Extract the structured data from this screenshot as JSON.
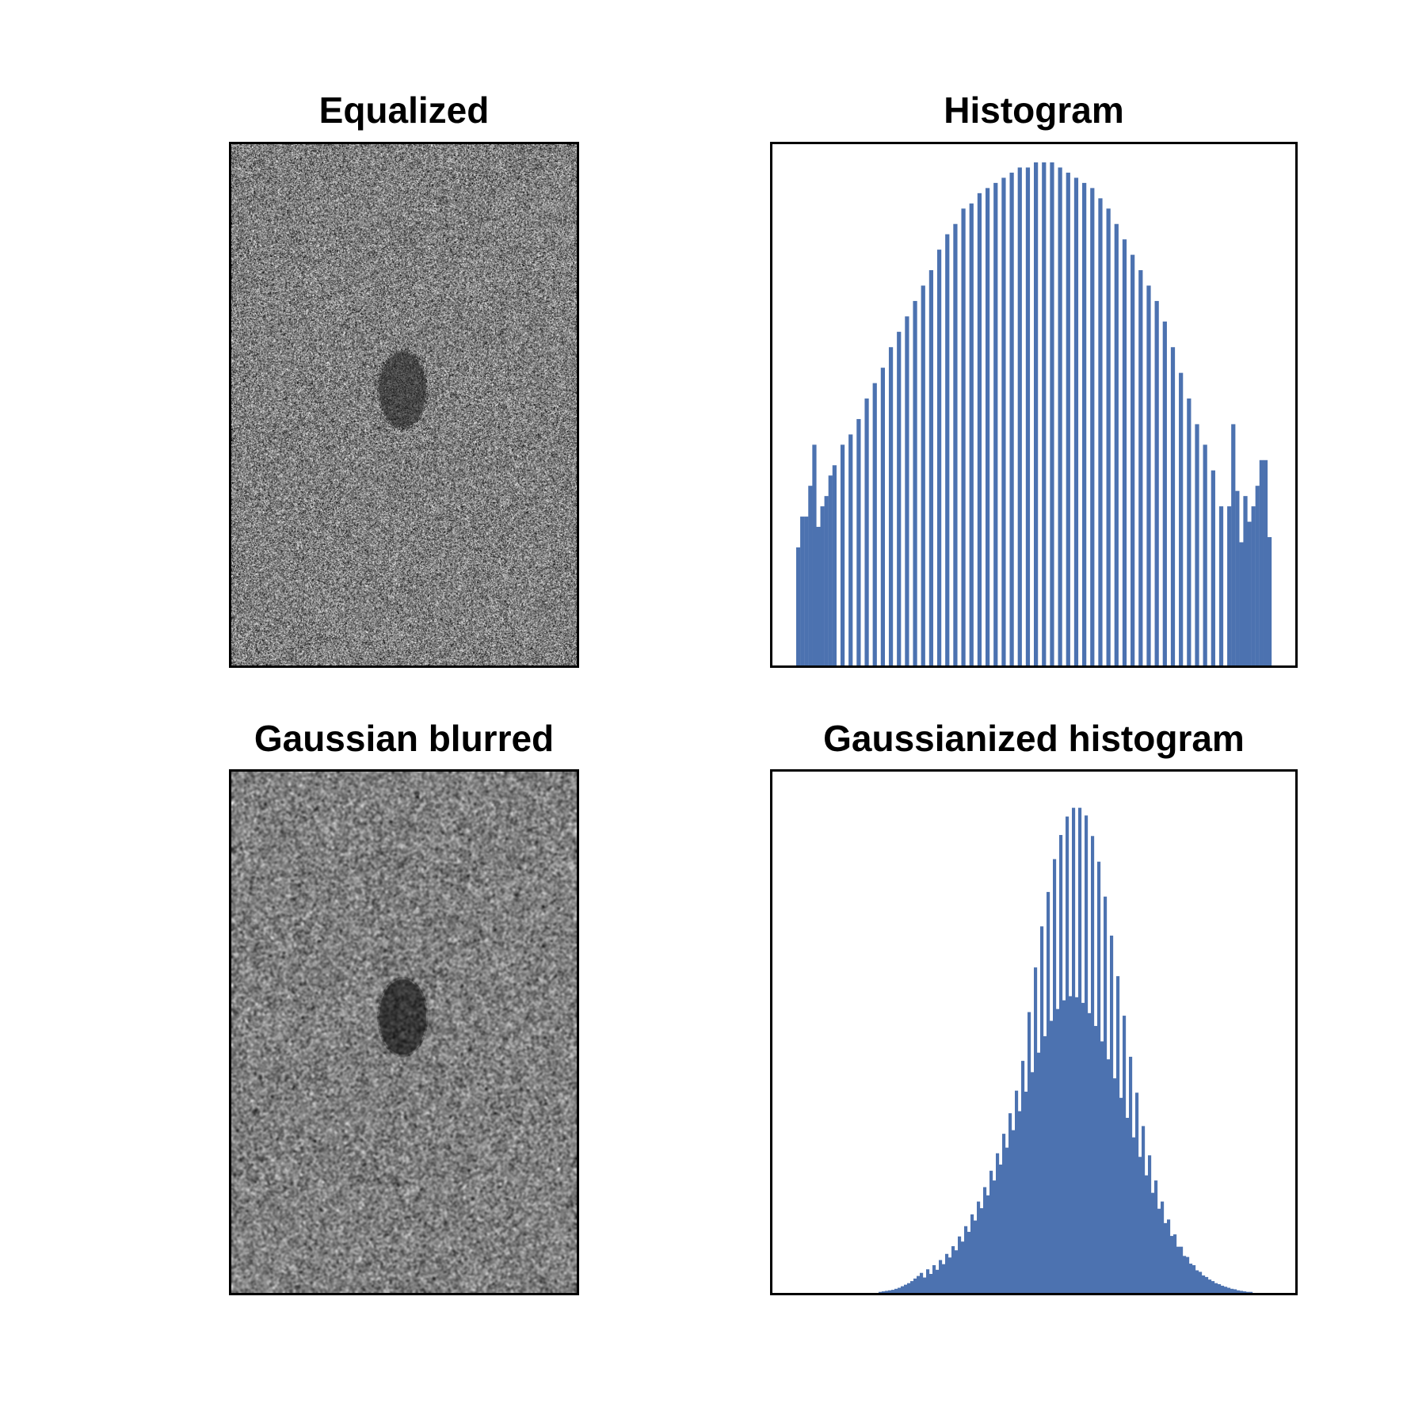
{
  "panels": {
    "equalized_title": "Equalized",
    "histogram_title": "Histogram",
    "blurred_title": "Gaussian blurred",
    "gaussianized_title": "Gaussianized histogram"
  },
  "images": {
    "noise_texture": "grayscale-noise",
    "blob": "dark-ellipse"
  },
  "chart_data": [
    {
      "type": "bar",
      "title": "Histogram",
      "bar_color": "#4c72b0",
      "axes": "none",
      "ylim": [
        0,
        1.0
      ],
      "values": [
        0.23,
        0.29,
        0.29,
        0.35,
        0.43,
        0.27,
        0.31,
        0.33,
        0.37,
        0.39,
        0,
        0.43,
        0,
        0.45,
        0,
        0.48,
        0,
        0.52,
        0,
        0.55,
        0,
        0.58,
        0,
        0.62,
        0,
        0.65,
        0,
        0.68,
        0,
        0.71,
        0,
        0.74,
        0,
        0.77,
        0,
        0.81,
        0,
        0.84,
        0,
        0.86,
        0,
        0.89,
        0,
        0.9,
        0,
        0.92,
        0,
        0.93,
        0,
        0.94,
        0,
        0.95,
        0,
        0.96,
        0,
        0.97,
        0,
        0.97,
        0,
        0.98,
        0,
        0.98,
        0,
        0.98,
        0,
        0.97,
        0,
        0.96,
        0,
        0.95,
        0,
        0.94,
        0,
        0.93,
        0,
        0.91,
        0,
        0.89,
        0,
        0.86,
        0,
        0.83,
        0,
        0.8,
        0,
        0.77,
        0,
        0.74,
        0,
        0.71,
        0,
        0.67,
        0,
        0.62,
        0,
        0.57,
        0,
        0.52,
        0,
        0.47,
        0,
        0.43,
        0,
        0.38,
        0,
        0.31,
        0,
        0.31,
        0.47,
        0.34,
        0.24,
        0.33,
        0.28,
        0.31,
        0.35,
        0.4,
        0.4,
        0.25
      ]
    },
    {
      "type": "bar",
      "title": "Gaussianized histogram",
      "bar_color": "#4c72b0",
      "axes": "none",
      "ylim": [
        0,
        1.0
      ],
      "values": [
        0,
        0,
        0,
        0,
        0,
        0,
        0,
        0,
        0,
        0,
        0,
        0,
        0,
        0,
        0,
        0,
        0,
        0,
        0,
        0,
        0,
        0,
        0,
        0,
        0,
        0,
        0.002,
        0.003,
        0.004,
        0.005,
        0.006,
        0.008,
        0.01,
        0.013,
        0.016,
        0.019,
        0.023,
        0.028,
        0.033,
        0.039,
        0.03,
        0.046,
        0.037,
        0.054,
        0.045,
        0.064,
        0.056,
        0.076,
        0.069,
        0.091,
        0.083,
        0.11,
        0.1,
        0.13,
        0.119,
        0.153,
        0.141,
        0.178,
        0.165,
        0.206,
        0.19,
        0.238,
        0.219,
        0.272,
        0.25,
        0.31,
        0.283,
        0.35,
        0.317,
        0.394,
        0.354,
        0.452,
        0.392,
        0.547,
        0.43,
        0.634,
        0.468,
        0.714,
        0.5,
        0.781,
        0.53,
        0.845,
        0.553,
        0.892,
        0.57,
        0.928,
        0.578,
        0.945,
        0.576,
        0.945,
        0.565,
        0.93,
        0.545,
        0.89,
        0.52,
        0.84,
        0.49,
        0.772,
        0.455,
        0.696,
        0.418,
        0.617,
        0.38,
        0.54,
        0.341,
        0.46,
        0.303,
        0.39,
        0.265,
        0.325,
        0.229,
        0.268,
        0.195,
        0.219,
        0.164,
        0.178,
        0.136,
        0.143,
        0.111,
        0.114,
        0.09,
        0.09,
        0.072,
        0.07,
        0.057,
        0.054,
        0.044,
        0.041,
        0.034,
        0.031,
        0.026,
        0.023,
        0.019,
        0.017,
        0.014,
        0.012,
        0.01,
        0.008,
        0.007,
        0.005,
        0.004,
        0.003,
        0.002,
        0.002,
        0,
        0,
        0,
        0,
        0,
        0
      ]
    }
  ]
}
